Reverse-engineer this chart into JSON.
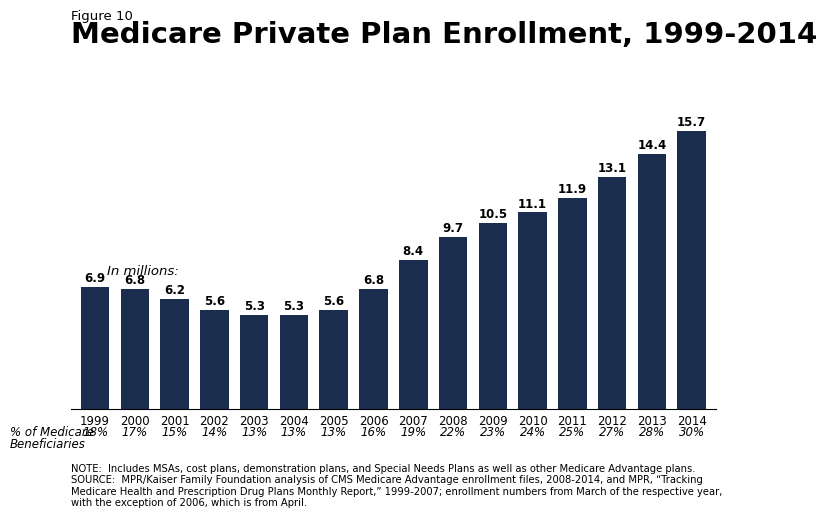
{
  "figure_label": "Figure 10",
  "title": "Medicare Private Plan Enrollment, 1999-2014",
  "years": [
    "1999",
    "2000",
    "2001",
    "2002",
    "2003",
    "2004",
    "2005",
    "2006",
    "2007",
    "2008",
    "2009",
    "2010",
    "2011",
    "2012",
    "2013",
    "2014"
  ],
  "values": [
    6.9,
    6.8,
    6.2,
    5.6,
    5.3,
    5.3,
    5.6,
    6.8,
    8.4,
    9.7,
    10.5,
    11.1,
    11.9,
    13.1,
    14.4,
    15.7
  ],
  "pct_labels": [
    "18%",
    "17%",
    "15%",
    "14%",
    "13%",
    "13%",
    "13%",
    "16%",
    "19%",
    "22%",
    "23%",
    "24%",
    "25%",
    "27%",
    "28%",
    "30%"
  ],
  "bar_color": "#1b2d4f",
  "in_millions_text": "In millions:",
  "pct_row_label_line1": "% of Medicare",
  "pct_row_label_line2": "Beneficiaries",
  "ylim": [
    0,
    17.5
  ],
  "note_text": "NOTE:  Includes MSAs, cost plans, demonstration plans, and Special Needs Plans as well as other Medicare Advantage plans.\nSOURCE:  MPR/Kaiser Family Foundation analysis of CMS Medicare Advantage enrollment files, 2008-2014, and MPR, “Tracking\nMedicare Health and Prescription Drug Plans Monthly Report,” 1999-2007; enrollment numbers from March of the respective year,\nwith the exception of 2006, which is from April.",
  "background_color": "#ffffff",
  "title_fontsize": 21,
  "figure_label_fontsize": 9.5,
  "bar_label_fontsize": 8.5,
  "axis_label_fontsize": 8.5,
  "note_fontsize": 7.2,
  "pct_fontsize": 8.5
}
